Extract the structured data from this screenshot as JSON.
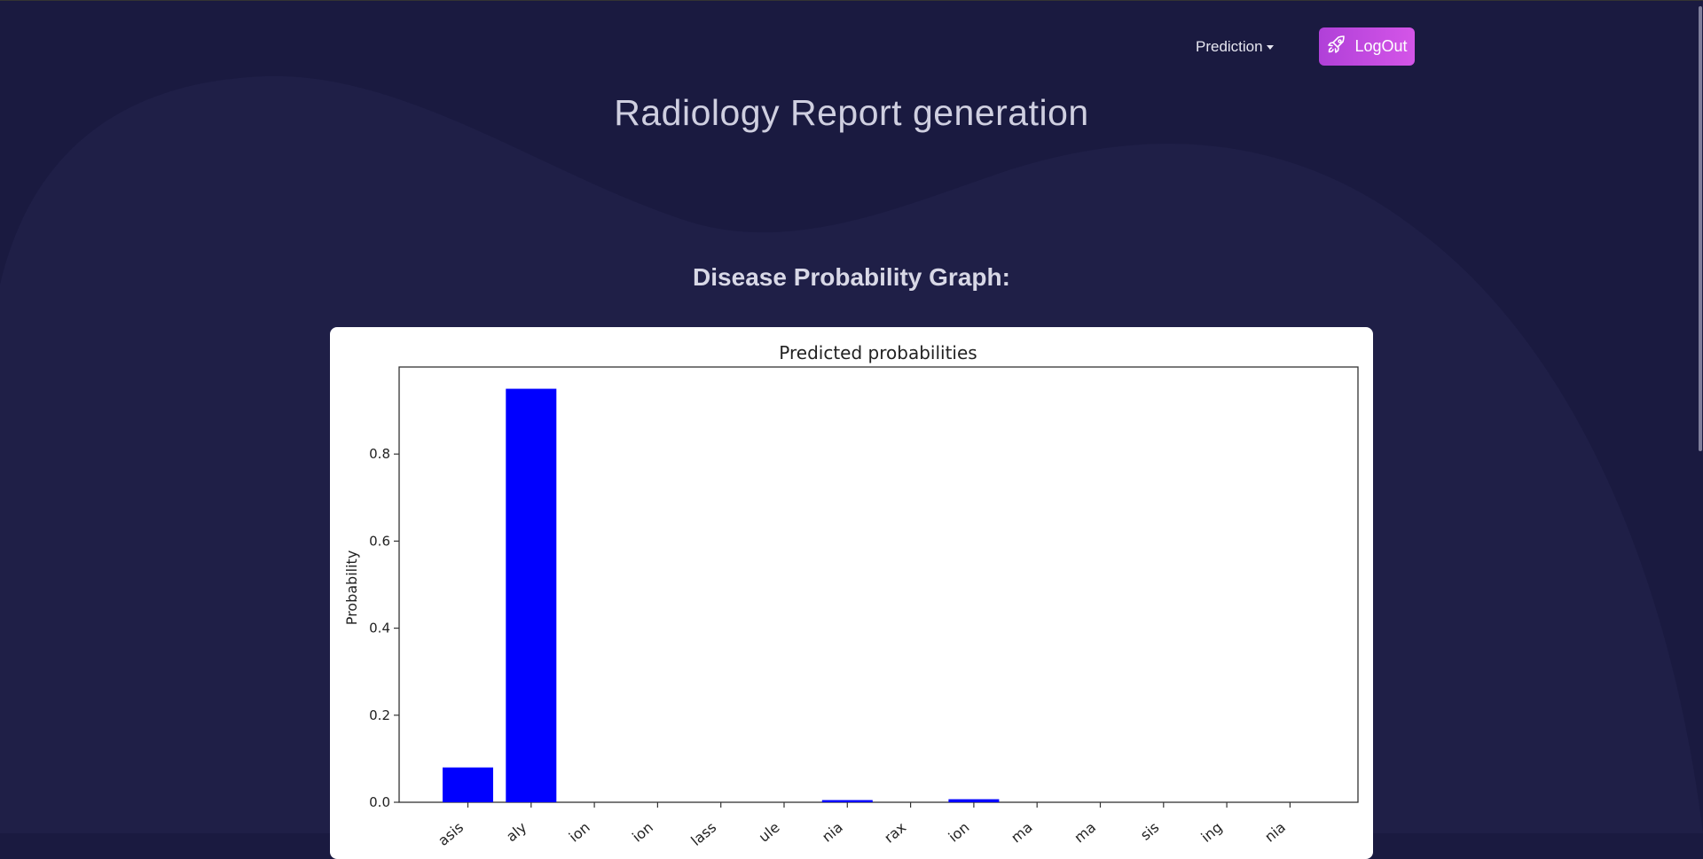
{
  "nav": {
    "dropdown_label": "Prediction",
    "dropdown_caret_icon": "caret-down-icon",
    "logout_label": "LogOut",
    "logout_icon": "rocket-icon"
  },
  "page": {
    "title": "Radiology Report generation",
    "section_title": "Disease Probability Graph:"
  },
  "colors": {
    "background": "#1a1a40",
    "blob": "#1f1f47",
    "accent": "#c44ae0",
    "bar": "#0000ff"
  },
  "chart_data": {
    "type": "bar",
    "title": "Predicted probabilities",
    "xlabel": "",
    "ylabel": "Probability",
    "categories": [
      "asis",
      "aly",
      "ion",
      "ion",
      "lass",
      "ule",
      "nia",
      "rax",
      "ion",
      "ma",
      "ma",
      "sis",
      "ing",
      "nia"
    ],
    "values": [
      0.08,
      0.95,
      0.0,
      0.0,
      0.0,
      0.0,
      0.005,
      0.0,
      0.007,
      0.0,
      0.0,
      0.0,
      0.0,
      0.0
    ],
    "ylim": [
      0,
      1.0
    ],
    "yticks": [
      "0.0",
      "0.2",
      "0.4",
      "0.6",
      "0.8"
    ],
    "grid": false,
    "legend": "none"
  }
}
